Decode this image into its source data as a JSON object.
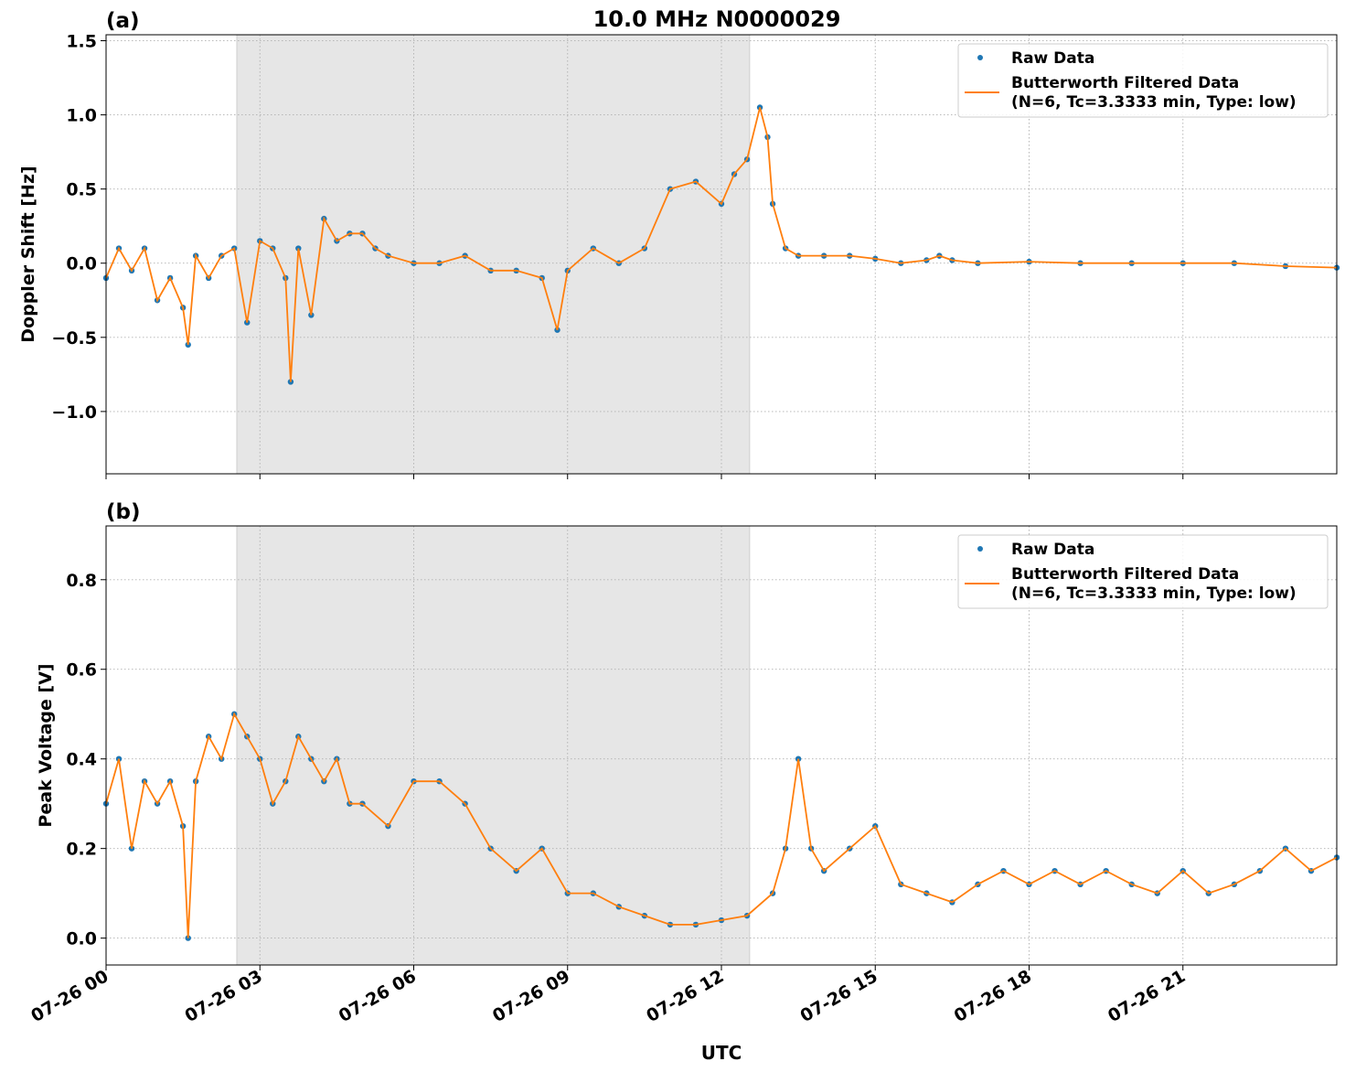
{
  "figure": {
    "title": "10.0 MHz N0000029",
    "xlabel": "UTC",
    "x_ticks": [
      "07-26 00",
      "07-26 03",
      "07-26 06",
      "07-26 09",
      "07-26 12",
      "07-26 15",
      "07-26 18",
      "07-26 21"
    ],
    "night_shading": {
      "start_hour": 2.55,
      "end_hour": 12.55,
      "color": "#e6e6e6"
    },
    "colors": {
      "raw": "#1f77b4",
      "filtered": "#ff7f0e"
    }
  },
  "chart_data": [
    {
      "panel": "(a)",
      "type": "scatter",
      "ylabel": "Doppler Shift [Hz]",
      "xlim_hours": [
        0,
        24
      ],
      "ylim": [
        -1.42,
        1.54
      ],
      "yticks": [
        "−1.0",
        "−0.5",
        "0.0",
        "0.5",
        "1.0",
        "1.5"
      ],
      "ytick_values": [
        -1.0,
        -0.5,
        0.0,
        0.5,
        1.0,
        1.5
      ],
      "grid": true,
      "legend": {
        "placement": "upper right",
        "raw_label": "Raw Data",
        "filtered_label_1": "Butterworth Filtered Data",
        "filtered_label_2": "(N=6, Tc=3.3333 min, Type: low)"
      },
      "series": [
        {
          "name": "Raw Data",
          "style": "points",
          "x_hours": [
            0.0,
            0.25,
            0.5,
            0.75,
            1.0,
            1.25,
            1.5,
            1.6,
            1.75,
            2.0,
            2.25,
            2.5,
            2.75,
            3.0,
            3.25,
            3.5,
            3.6,
            3.75,
            4.0,
            4.25,
            4.5,
            4.75,
            5.0,
            5.25,
            5.5,
            6.0,
            6.5,
            7.0,
            7.5,
            8.0,
            8.5,
            8.8,
            9.0,
            9.5,
            10.0,
            10.5,
            11.0,
            11.5,
            12.0,
            12.25,
            12.5,
            12.75,
            12.9,
            13.0,
            13.25,
            13.5,
            14.0,
            14.5,
            15.0,
            15.5,
            16.0,
            16.25,
            16.5,
            17.0,
            18.0,
            19.0,
            20.0,
            21.0,
            22.0,
            23.0,
            24.0
          ],
          "y": [
            -0.1,
            0.1,
            -0.05,
            0.1,
            -0.25,
            -0.1,
            -0.3,
            -0.55,
            0.05,
            -0.1,
            0.05,
            0.1,
            -0.4,
            0.15,
            0.1,
            -0.1,
            -0.8,
            0.1,
            -0.35,
            0.3,
            0.15,
            0.2,
            0.2,
            0.1,
            0.05,
            0.0,
            0.0,
            0.05,
            -0.05,
            -0.05,
            -0.1,
            -0.45,
            -0.05,
            0.1,
            0.0,
            0.1,
            0.5,
            0.55,
            0.4,
            0.6,
            0.7,
            1.05,
            0.85,
            0.4,
            0.1,
            0.05,
            0.05,
            0.05,
            0.03,
            0.0,
            0.02,
            0.05,
            0.02,
            0.0,
            0.01,
            0.0,
            0.0,
            0.0,
            0.0,
            -0.02,
            -0.03
          ]
        },
        {
          "name": "Butterworth Filtered Data",
          "style": "line",
          "x_hours": [
            0.0,
            0.25,
            0.5,
            0.75,
            1.0,
            1.25,
            1.5,
            1.6,
            1.75,
            2.0,
            2.25,
            2.5,
            2.75,
            3.0,
            3.25,
            3.5,
            3.6,
            3.75,
            4.0,
            4.25,
            4.5,
            4.75,
            5.0,
            5.25,
            5.5,
            6.0,
            6.5,
            7.0,
            7.5,
            8.0,
            8.5,
            8.8,
            9.0,
            9.5,
            10.0,
            10.5,
            11.0,
            11.5,
            12.0,
            12.25,
            12.5,
            12.75,
            12.9,
            13.0,
            13.25,
            13.5,
            14.0,
            14.5,
            15.0,
            15.5,
            16.0,
            16.25,
            16.5,
            17.0,
            18.0,
            19.0,
            20.0,
            21.0,
            22.0,
            23.0,
            24.0
          ],
          "y": [
            -0.1,
            0.1,
            -0.05,
            0.1,
            -0.25,
            -0.1,
            -0.3,
            -0.55,
            0.05,
            -0.1,
            0.05,
            0.1,
            -0.4,
            0.15,
            0.1,
            -0.1,
            -0.8,
            0.1,
            -0.35,
            0.3,
            0.15,
            0.2,
            0.2,
            0.1,
            0.05,
            0.0,
            0.0,
            0.05,
            -0.05,
            -0.05,
            -0.1,
            -0.45,
            -0.05,
            0.1,
            0.0,
            0.1,
            0.5,
            0.55,
            0.4,
            0.6,
            0.7,
            1.05,
            0.85,
            0.4,
            0.1,
            0.05,
            0.05,
            0.05,
            0.03,
            0.0,
            0.02,
            0.05,
            0.02,
            0.0,
            0.01,
            0.0,
            0.0,
            0.0,
            0.0,
            -0.02,
            -0.03
          ]
        }
      ]
    },
    {
      "panel": "(b)",
      "type": "scatter",
      "ylabel": "Peak Voltage [V]",
      "xlim_hours": [
        0,
        24
      ],
      "ylim": [
        -0.06,
        0.92
      ],
      "yticks": [
        "0.0",
        "0.2",
        "0.4",
        "0.6",
        "0.8"
      ],
      "ytick_values": [
        0.0,
        0.2,
        0.4,
        0.6,
        0.8
      ],
      "grid": true,
      "legend": {
        "placement": "upper right",
        "raw_label": "Raw Data",
        "filtered_label_1": "Butterworth Filtered Data",
        "filtered_label_2": "(N=6, Tc=3.3333 min, Type: low)"
      },
      "series": [
        {
          "name": "Raw Data",
          "style": "points",
          "x_hours": [
            0.0,
            0.25,
            0.5,
            0.75,
            1.0,
            1.25,
            1.5,
            1.6,
            1.75,
            2.0,
            2.25,
            2.5,
            2.75,
            3.0,
            3.25,
            3.5,
            3.75,
            4.0,
            4.25,
            4.5,
            4.75,
            5.0,
            5.5,
            6.0,
            6.5,
            7.0,
            7.5,
            8.0,
            8.5,
            9.0,
            9.5,
            10.0,
            10.5,
            11.0,
            11.5,
            12.0,
            12.5,
            13.0,
            13.25,
            13.5,
            13.75,
            14.0,
            14.5,
            15.0,
            15.5,
            16.0,
            16.5,
            17.0,
            17.5,
            18.0,
            18.5,
            19.0,
            19.5,
            20.0,
            20.5,
            21.0,
            21.5,
            22.0,
            22.5,
            23.0,
            23.5,
            24.0
          ],
          "y": [
            0.3,
            0.4,
            0.2,
            0.35,
            0.3,
            0.35,
            0.25,
            0.0,
            0.35,
            0.45,
            0.4,
            0.5,
            0.45,
            0.4,
            0.3,
            0.35,
            0.45,
            0.4,
            0.35,
            0.4,
            0.3,
            0.3,
            0.25,
            0.35,
            0.35,
            0.3,
            0.2,
            0.15,
            0.2,
            0.1,
            0.1,
            0.07,
            0.05,
            0.03,
            0.03,
            0.04,
            0.05,
            0.1,
            0.2,
            0.4,
            0.2,
            0.15,
            0.2,
            0.25,
            0.12,
            0.1,
            0.08,
            0.12,
            0.15,
            0.12,
            0.15,
            0.12,
            0.15,
            0.12,
            0.1,
            0.15,
            0.1,
            0.12,
            0.15,
            0.2,
            0.15,
            0.18
          ]
        },
        {
          "name": "Butterworth Filtered Data",
          "style": "line",
          "x_hours": [
            0.0,
            0.25,
            0.5,
            0.75,
            1.0,
            1.25,
            1.5,
            1.6,
            1.75,
            2.0,
            2.25,
            2.5,
            2.75,
            3.0,
            3.25,
            3.5,
            3.75,
            4.0,
            4.25,
            4.5,
            4.75,
            5.0,
            5.5,
            6.0,
            6.5,
            7.0,
            7.5,
            8.0,
            8.5,
            9.0,
            9.5,
            10.0,
            10.5,
            11.0,
            11.5,
            12.0,
            12.5,
            13.0,
            13.25,
            13.5,
            13.75,
            14.0,
            14.5,
            15.0,
            15.5,
            16.0,
            16.5,
            17.0,
            17.5,
            18.0,
            18.5,
            19.0,
            19.5,
            20.0,
            20.5,
            21.0,
            21.5,
            22.0,
            22.5,
            23.0,
            23.5,
            24.0
          ],
          "y": [
            0.3,
            0.4,
            0.2,
            0.35,
            0.3,
            0.35,
            0.25,
            0.0,
            0.35,
            0.45,
            0.4,
            0.5,
            0.45,
            0.4,
            0.3,
            0.35,
            0.45,
            0.4,
            0.35,
            0.4,
            0.3,
            0.3,
            0.25,
            0.35,
            0.35,
            0.3,
            0.2,
            0.15,
            0.2,
            0.1,
            0.1,
            0.07,
            0.05,
            0.03,
            0.03,
            0.04,
            0.05,
            0.1,
            0.2,
            0.4,
            0.2,
            0.15,
            0.2,
            0.25,
            0.12,
            0.1,
            0.08,
            0.12,
            0.15,
            0.12,
            0.15,
            0.12,
            0.15,
            0.12,
            0.1,
            0.15,
            0.1,
            0.12,
            0.15,
            0.2,
            0.15,
            0.18
          ]
        }
      ]
    }
  ]
}
